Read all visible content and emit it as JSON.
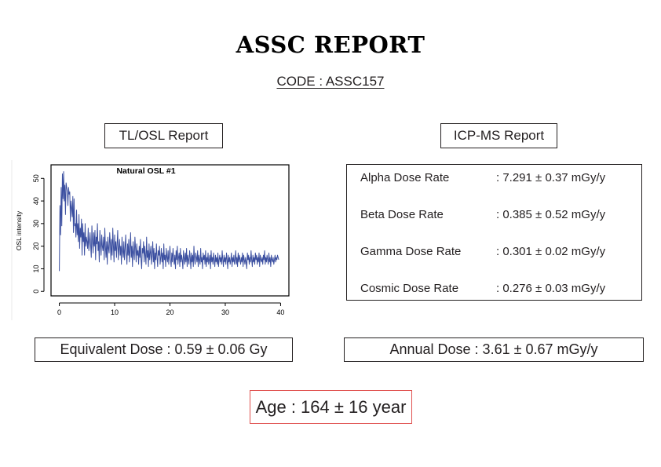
{
  "report": {
    "title": "ASSC REPORT",
    "code": "CODE : ASSC157"
  },
  "tl_osl": {
    "label": "TL/OSL Report",
    "equivalent_dose": "Equivalent Dose : 0.59 ± 0.06 Gy"
  },
  "icp_ms": {
    "label": "ICP-MS Report",
    "rows": [
      {
        "name": "Alpha Dose Rate",
        "value": ": 7.291 ± 0.37 mGy/y"
      },
      {
        "name": "Beta Dose Rate",
        "value": ": 0.385 ± 0.52 mGy/y"
      },
      {
        "name": "Gamma Dose Rate",
        "value": ": 0.301 ± 0.02 mGy/y"
      },
      {
        "name": "Cosmic Dose Rate",
        "value": ": 0.276 ± 0.03 mGy/y"
      }
    ],
    "annual_dose": "Annual Dose : 3.61 ± 0.67 mGy/y"
  },
  "age": "Age : 164 ± 16 year",
  "colors": {
    "line": "#3b4fa0",
    "age_border": "#e0504e"
  },
  "chart_data": {
    "type": "line",
    "title": "Natural OSL #1",
    "xlabel": "",
    "ylabel": "OSL intensity",
    "xlim": [
      -1.5,
      41.5
    ],
    "ylim": [
      -2,
      56
    ],
    "xticks": [
      0,
      10,
      20,
      30,
      40
    ],
    "yticks": [
      0,
      10,
      20,
      30,
      40,
      50
    ],
    "series": [
      {
        "values": [
          9,
          38,
          25,
          46,
          29,
          52,
          41,
          53,
          40,
          47,
          34,
          48,
          46,
          44,
          38,
          46,
          43,
          44,
          31,
          40,
          37,
          33,
          42,
          26,
          41,
          29,
          30,
          24,
          36,
          25,
          30,
          22,
          34,
          19,
          28,
          24,
          32,
          16,
          30,
          22,
          26,
          16,
          30,
          20,
          24,
          22,
          19,
          28,
          18,
          22,
          26,
          20,
          15,
          29,
          22,
          17,
          26,
          20,
          27,
          14,
          24,
          21,
          30,
          18,
          22,
          13,
          27,
          21,
          16,
          25,
          20,
          18,
          24,
          14,
          28,
          20,
          15,
          22,
          12,
          24,
          19,
          17,
          26,
          21,
          14,
          23,
          16,
          28,
          20,
          13,
          25,
          18,
          22,
          15,
          21,
          27,
          14,
          19,
          23,
          16,
          20,
          12,
          24,
          18,
          15,
          22,
          14,
          19,
          25,
          17,
          12,
          21,
          16,
          23,
          13,
          18,
          26,
          15,
          20,
          11,
          22,
          17,
          14,
          24,
          19,
          13,
          21,
          16,
          18,
          12,
          20,
          15,
          23,
          14,
          10,
          19,
          17,
          22,
          13,
          20,
          16,
          12,
          24,
          15,
          18,
          11,
          21,
          14,
          17,
          20,
          12,
          16,
          22,
          13,
          19,
          10,
          17,
          14,
          21,
          15,
          11,
          18,
          16,
          20,
          12,
          15,
          19,
          13,
          17,
          10,
          21,
          14,
          16,
          11,
          19,
          15,
          13,
          18,
          12,
          16,
          20,
          14,
          11,
          17,
          13,
          19,
          15,
          12,
          16,
          10,
          18,
          14,
          20,
          12,
          15,
          17,
          11,
          19,
          13,
          16,
          14,
          10,
          18,
          15,
          12,
          17,
          13,
          19,
          11,
          16,
          14,
          12,
          18,
          15,
          10,
          17,
          13,
          16,
          11,
          20,
          14,
          12,
          17,
          15,
          13,
          18,
          11,
          16,
          14,
          12,
          19,
          13,
          15,
          10,
          17,
          14,
          16,
          12,
          18,
          11,
          15,
          13,
          17,
          12,
          14,
          16,
          10,
          18,
          13,
          15,
          12,
          17,
          14,
          11,
          16,
          13,
          15,
          12,
          17,
          11,
          14,
          16,
          13,
          15,
          12,
          18,
          14,
          11,
          16,
          13,
          15,
          12,
          17,
          14,
          10,
          16,
          13,
          15,
          12,
          14,
          17,
          11,
          15,
          13,
          16,
          12,
          14,
          18,
          12,
          15,
          11,
          17,
          13,
          16,
          14,
          12,
          15,
          13,
          17,
          11,
          16,
          14,
          12,
          15,
          13,
          10,
          17,
          14,
          16,
          12,
          15,
          13,
          18,
          14,
          11,
          16,
          13,
          15,
          12,
          17,
          14,
          16,
          12,
          15,
          13,
          17,
          11,
          16,
          14,
          13,
          15,
          12,
          16,
          14,
          18,
          12,
          15,
          13,
          16,
          14,
          12,
          17,
          13,
          15,
          11,
          16,
          14,
          13,
          15,
          12,
          14,
          16,
          13,
          15,
          14,
          16,
          15,
          14
        ],
        "x_start": 0,
        "x_step": 0.1111
      }
    ]
  }
}
